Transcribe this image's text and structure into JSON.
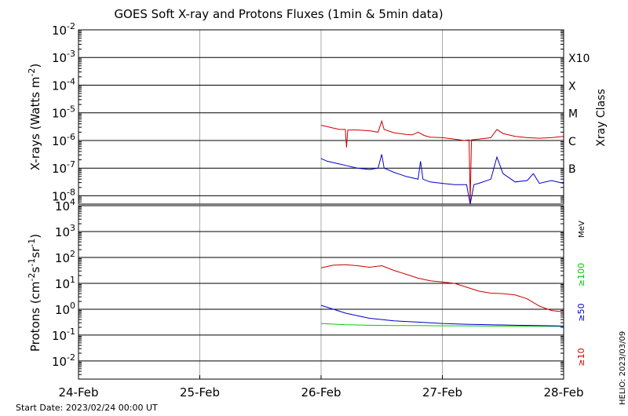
{
  "title": "GOES Soft X-ray and Protons Fluxes   (1min & 5min data)",
  "start_date": "Start Date: 2023/02/24 00:00 UT",
  "helio_stamp": "HELIO: 2023/03/09",
  "chart_data": [
    {
      "panel": "xray",
      "type": "line",
      "scale": "log",
      "ylabel_main": "X-rays (Watts m",
      "ylabel_sup": "-2",
      "ylabel_end": ")",
      "right_label": "Xray Class",
      "ylim_exp": [
        -8.3,
        -2
      ],
      "ytick_exps": [
        -8,
        -7,
        -6,
        -5,
        -4,
        -3,
        -2
      ],
      "class_labels": [
        {
          "label": "X10",
          "exp": -3
        },
        {
          "label": "X",
          "exp": -4
        },
        {
          "label": "M",
          "exp": -5
        },
        {
          "label": "C",
          "exp": -6
        },
        {
          "label": "B",
          "exp": -7
        }
      ],
      "x_days": [
        0,
        1,
        2,
        3,
        4
      ],
      "series": [
        {
          "color": "#cc0000",
          "points": [
            [
              2.0,
              -5.45
            ],
            [
              2.05,
              -5.5
            ],
            [
              2.1,
              -5.55
            ],
            [
              2.15,
              -5.6
            ],
            [
              2.2,
              -5.6
            ],
            [
              2.21,
              -6.25
            ],
            [
              2.22,
              -5.62
            ],
            [
              2.3,
              -5.62
            ],
            [
              2.4,
              -5.65
            ],
            [
              2.47,
              -5.7
            ],
            [
              2.5,
              -5.3
            ],
            [
              2.52,
              -5.6
            ],
            [
              2.6,
              -5.72
            ],
            [
              2.7,
              -5.78
            ],
            [
              2.75,
              -5.8
            ],
            [
              2.8,
              -5.7
            ],
            [
              2.85,
              -5.82
            ],
            [
              2.9,
              -5.88
            ],
            [
              3.0,
              -5.9
            ],
            [
              3.1,
              -5.95
            ],
            [
              3.18,
              -6.0
            ],
            [
              3.22,
              -5.98
            ],
            [
              3.23,
              -8.2
            ],
            [
              3.24,
              -5.98
            ],
            [
              3.3,
              -5.95
            ],
            [
              3.4,
              -5.9
            ],
            [
              3.45,
              -5.6
            ],
            [
              3.5,
              -5.75
            ],
            [
              3.6,
              -5.85
            ],
            [
              3.7,
              -5.9
            ],
            [
              3.8,
              -5.92
            ],
            [
              3.9,
              -5.9
            ],
            [
              4.0,
              -5.85
            ]
          ]
        },
        {
          "color": "#0000cc",
          "points": [
            [
              2.0,
              -6.65
            ],
            [
              2.05,
              -6.75
            ],
            [
              2.1,
              -6.8
            ],
            [
              2.15,
              -6.85
            ],
            [
              2.2,
              -6.9
            ],
            [
              2.3,
              -7.0
            ],
            [
              2.4,
              -7.05
            ],
            [
              2.47,
              -7.0
            ],
            [
              2.5,
              -6.5
            ],
            [
              2.52,
              -7.0
            ],
            [
              2.6,
              -7.15
            ],
            [
              2.7,
              -7.3
            ],
            [
              2.8,
              -7.4
            ],
            [
              2.82,
              -6.75
            ],
            [
              2.84,
              -7.4
            ],
            [
              2.9,
              -7.5
            ],
            [
              3.0,
              -7.55
            ],
            [
              3.1,
              -7.6
            ],
            [
              3.2,
              -7.6
            ],
            [
              3.23,
              -8.3
            ],
            [
              3.26,
              -7.6
            ],
            [
              3.3,
              -7.55
            ],
            [
              3.4,
              -7.4
            ],
            [
              3.45,
              -6.6
            ],
            [
              3.5,
              -7.2
            ],
            [
              3.6,
              -7.5
            ],
            [
              3.7,
              -7.45
            ],
            [
              3.75,
              -7.2
            ],
            [
              3.8,
              -7.55
            ],
            [
              3.9,
              -7.45
            ],
            [
              4.0,
              -7.55
            ]
          ]
        }
      ]
    },
    {
      "panel": "protons",
      "type": "line",
      "scale": "log",
      "ylabel_main": "Protons (cm",
      "ylabel_sup1": "-2",
      "ylabel_mid1": "s",
      "ylabel_sup2": "-1",
      "ylabel_mid2": "sr",
      "ylabel_sup3": "-1",
      "ylabel_end": ")",
      "unit": "MeV",
      "ylim_exp": [
        -2.7,
        4
      ],
      "ytick_exps": [
        -2,
        -1,
        0,
        1,
        2,
        3,
        4
      ],
      "threshold_exp": 1,
      "x_days": [
        0,
        1,
        2,
        3,
        4
      ],
      "series": [
        {
          "name": "≥100",
          "color": "#00cc00",
          "points": [
            [
              2.0,
              -0.55
            ],
            [
              2.2,
              -0.6
            ],
            [
              2.4,
              -0.62
            ],
            [
              2.6,
              -0.63
            ],
            [
              2.8,
              -0.63
            ],
            [
              3.0,
              -0.64
            ],
            [
              3.2,
              -0.64
            ],
            [
              3.4,
              -0.65
            ],
            [
              3.6,
              -0.65
            ],
            [
              3.8,
              -0.66
            ],
            [
              4.0,
              -0.66
            ]
          ]
        },
        {
          "name": "≥50",
          "color": "#0000cc",
          "points": [
            [
              2.0,
              0.15
            ],
            [
              2.1,
              0.0
            ],
            [
              2.2,
              -0.15
            ],
            [
              2.3,
              -0.25
            ],
            [
              2.4,
              -0.35
            ],
            [
              2.5,
              -0.4
            ],
            [
              2.6,
              -0.45
            ],
            [
              2.8,
              -0.5
            ],
            [
              3.0,
              -0.55
            ],
            [
              3.2,
              -0.58
            ],
            [
              3.4,
              -0.6
            ],
            [
              3.6,
              -0.62
            ],
            [
              3.8,
              -0.63
            ],
            [
              4.0,
              -0.65
            ]
          ]
        },
        {
          "name": "≥10",
          "color": "#cc0000",
          "points": [
            [
              2.0,
              1.6
            ],
            [
              2.1,
              1.7
            ],
            [
              2.2,
              1.72
            ],
            [
              2.3,
              1.68
            ],
            [
              2.4,
              1.62
            ],
            [
              2.5,
              1.68
            ],
            [
              2.6,
              1.5
            ],
            [
              2.7,
              1.35
            ],
            [
              2.8,
              1.2
            ],
            [
              2.9,
              1.1
            ],
            [
              3.0,
              1.05
            ],
            [
              3.1,
              1.0
            ],
            [
              3.2,
              0.85
            ],
            [
              3.3,
              0.7
            ],
            [
              3.4,
              0.62
            ],
            [
              3.5,
              0.6
            ],
            [
              3.6,
              0.55
            ],
            [
              3.7,
              0.4
            ],
            [
              3.8,
              0.12
            ],
            [
              3.9,
              -0.05
            ],
            [
              4.0,
              -0.1
            ]
          ]
        }
      ]
    }
  ],
  "x_tick_labels": [
    "24-Feb",
    "25-Feb",
    "26-Feb",
    "27-Feb",
    "28-Feb"
  ]
}
